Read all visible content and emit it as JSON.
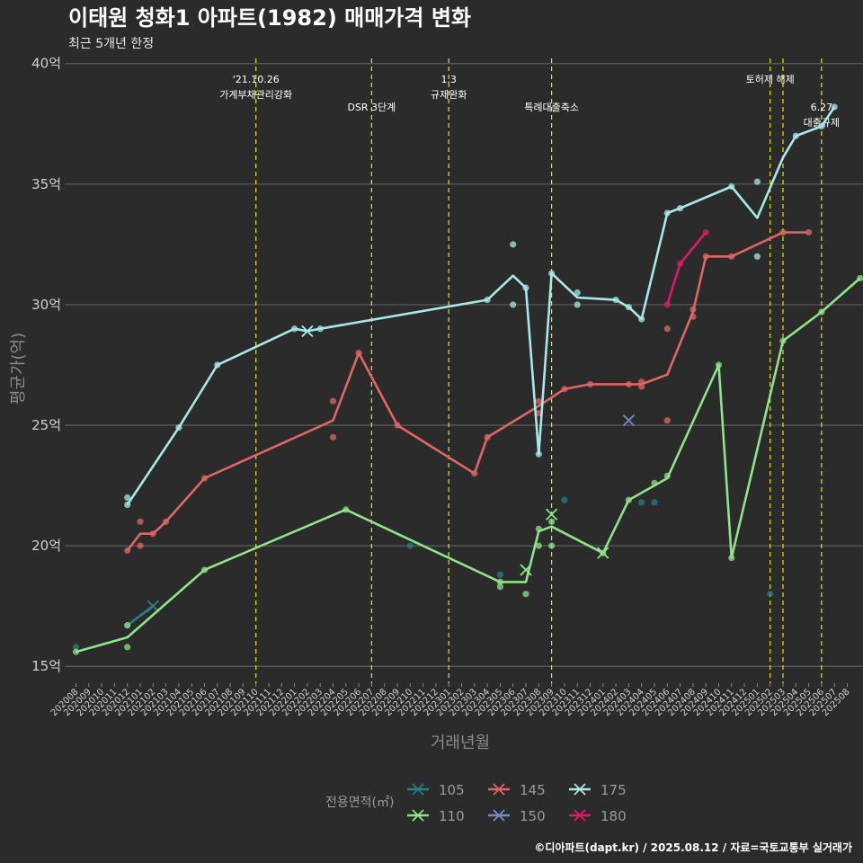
{
  "chart_data": {
    "type": "line",
    "title": "이태원 청화1 아파트(1982) 매매가격 변화",
    "subtitle": "최근 5개년 한정",
    "xlabel": "거래년월",
    "ylabel": "평균가(억)",
    "caption": "©디아파트(dapt.kr) / 2025.08.12 / 자료=국토교통부 실거래가",
    "ylim": [
      14.3,
      40.4
    ],
    "yticks": [
      {
        "value": 15,
        "label": "15억"
      },
      {
        "value": 20,
        "label": "20억"
      },
      {
        "value": 25,
        "label": "25억"
      },
      {
        "value": 30,
        "label": "30억"
      },
      {
        "value": 35,
        "label": "35억"
      },
      {
        "value": 40,
        "label": "40억"
      }
    ],
    "categories": [
      "202008",
      "202009",
      "202010",
      "202011",
      "202012",
      "202101",
      "202102",
      "202103",
      "202104",
      "202105",
      "202106",
      "202107",
      "202108",
      "202109",
      "202110",
      "202111",
      "202112",
      "202201",
      "202202",
      "202203",
      "202204",
      "202205",
      "202206",
      "202207",
      "202208",
      "202209",
      "202210",
      "202211",
      "202212",
      "202301",
      "202302",
      "202303",
      "202304",
      "202305",
      "202306",
      "202307",
      "202308",
      "202309",
      "202310",
      "202311",
      "202312",
      "202401",
      "202402",
      "202403",
      "202404",
      "202405",
      "202406",
      "202407",
      "202408",
      "202409",
      "202410",
      "202411",
      "202412",
      "202501",
      "202502",
      "202503",
      "202504",
      "202505",
      "202506",
      "202507",
      "202508"
    ],
    "events": [
      {
        "x": 14,
        "lines": [
          "'21.10.26",
          "가계부채관리강화"
        ],
        "dy": 0
      },
      {
        "x": 23,
        "lines": [
          "DSR 3단계"
        ],
        "dy": 1
      },
      {
        "x": 29,
        "lines": [
          "1.3",
          "규제완화"
        ],
        "dy": 0
      },
      {
        "x": 37,
        "lines": [
          "특례대출축소"
        ],
        "dy": 1
      },
      {
        "x": 54,
        "lines": [
          "토허제 해제"
        ],
        "dy": 0
      },
      {
        "x": 55,
        "lines": [],
        "dy": 0
      },
      {
        "x": 58,
        "lines": [
          "6.27",
          "대출규제"
        ],
        "dy": 1
      }
    ],
    "legend_title": "전용면적(㎡)",
    "series": [
      {
        "name": "105",
        "color": "#2a7f86",
        "line": [
          [
            4,
            16.7
          ],
          [
            6,
            17.5
          ]
        ],
        "x_marks": [
          [
            6,
            17.5
          ]
        ],
        "points": [
          [
            0,
            15.8
          ],
          [
            4,
            16.7
          ],
          [
            26,
            20.0
          ],
          [
            33,
            18.8
          ],
          [
            38,
            21.9
          ],
          [
            44,
            21.8
          ],
          [
            45,
            21.8
          ],
          [
            54,
            18.0
          ]
        ]
      },
      {
        "name": "110",
        "color": "#8fe388",
        "line": [
          [
            0,
            15.6
          ],
          [
            4,
            16.2
          ],
          [
            10,
            19.0
          ],
          [
            21,
            21.5
          ],
          [
            33,
            18.5
          ],
          [
            35,
            18.5
          ],
          [
            36,
            20.6
          ],
          [
            37,
            20.8
          ],
          [
            41,
            19.7
          ],
          [
            43,
            21.9
          ],
          [
            45,
            22.5
          ],
          [
            46,
            22.8
          ],
          [
            50,
            27.5
          ],
          [
            51,
            19.5
          ],
          [
            55,
            28.5
          ],
          [
            58,
            29.7
          ],
          [
            61,
            31.1
          ]
        ],
        "x_marks": [
          [
            35,
            19.0
          ],
          [
            37,
            21.3
          ],
          [
            41,
            19.7
          ]
        ],
        "points": [
          [
            0,
            15.6
          ],
          [
            4,
            15.8
          ],
          [
            4,
            16.7
          ],
          [
            10,
            19.0
          ],
          [
            21,
            21.5
          ],
          [
            33,
            18.3
          ],
          [
            33,
            18.5
          ],
          [
            35,
            18.0
          ],
          [
            36,
            20.0
          ],
          [
            36,
            20.7
          ],
          [
            37,
            20.0
          ],
          [
            37,
            21.0
          ],
          [
            41,
            19.7
          ],
          [
            43,
            21.9
          ],
          [
            45,
            22.6
          ],
          [
            46,
            22.9
          ],
          [
            50,
            27.5
          ],
          [
            51,
            19.5
          ],
          [
            55,
            28.5
          ],
          [
            58,
            29.7
          ],
          [
            61,
            31.1
          ]
        ]
      },
      {
        "name": "145",
        "color": "#e06666",
        "line": [
          [
            4,
            19.8
          ],
          [
            5,
            20.5
          ],
          [
            6,
            20.5
          ],
          [
            7,
            21.0
          ],
          [
            10,
            22.8
          ],
          [
            20,
            25.2
          ],
          [
            22,
            28.0
          ],
          [
            25,
            25.0
          ],
          [
            31,
            23.0
          ],
          [
            32,
            24.5
          ],
          [
            36,
            25.8
          ],
          [
            38,
            26.5
          ],
          [
            40,
            26.7
          ],
          [
            43,
            26.7
          ],
          [
            44,
            26.7
          ],
          [
            46,
            27.1
          ],
          [
            48,
            29.7
          ],
          [
            49,
            32.0
          ],
          [
            51,
            32.0
          ],
          [
            55,
            33.0
          ],
          [
            57,
            33.0
          ]
        ],
        "x_marks": [],
        "points": [
          [
            4,
            19.8
          ],
          [
            5,
            20.0
          ],
          [
            5,
            21.0
          ],
          [
            6,
            20.5
          ],
          [
            7,
            21.0
          ],
          [
            10,
            22.8
          ],
          [
            20,
            24.5
          ],
          [
            20,
            26.0
          ],
          [
            22,
            28.0
          ],
          [
            25,
            25.0
          ],
          [
            31,
            23.0
          ],
          [
            32,
            24.5
          ],
          [
            36,
            25.5
          ],
          [
            36,
            26.0
          ],
          [
            38,
            26.5
          ],
          [
            40,
            26.7
          ],
          [
            43,
            26.7
          ],
          [
            44,
            26.6
          ],
          [
            44,
            26.8
          ],
          [
            46,
            25.2
          ],
          [
            46,
            29.0
          ],
          [
            48,
            29.5
          ],
          [
            48,
            29.8
          ],
          [
            49,
            32.0
          ],
          [
            51,
            32.0
          ],
          [
            55,
            33.0
          ],
          [
            57,
            33.0
          ]
        ]
      },
      {
        "name": "150",
        "color": "#6f8fc7",
        "line": [],
        "x_marks": [
          [
            43,
            25.2
          ]
        ],
        "points": []
      },
      {
        "name": "175",
        "color": "#a8e8ea",
        "line": [
          [
            4,
            21.7
          ],
          [
            8,
            24.9
          ],
          [
            11,
            27.5
          ],
          [
            17,
            29.0
          ],
          [
            18,
            28.9
          ],
          [
            19,
            29.0
          ],
          [
            32,
            30.2
          ],
          [
            34,
            31.2
          ],
          [
            35,
            30.7
          ],
          [
            36,
            23.8
          ],
          [
            37,
            31.3
          ],
          [
            39,
            30.3
          ],
          [
            42,
            30.2
          ],
          [
            43,
            29.9
          ],
          [
            44,
            29.4
          ],
          [
            46,
            33.8
          ],
          [
            47,
            34.0
          ],
          [
            51,
            34.9
          ],
          [
            53,
            33.6
          ],
          [
            55,
            36.1
          ],
          [
            56,
            37.0
          ],
          [
            58,
            37.4
          ],
          [
            59,
            38.2
          ]
        ],
        "x_marks": [
          [
            18,
            28.9
          ]
        ],
        "points": [
          [
            4,
            21.7
          ],
          [
            4,
            22.0
          ],
          [
            8,
            24.9
          ],
          [
            11,
            27.5
          ],
          [
            17,
            29.0
          ],
          [
            19,
            29.0
          ],
          [
            32,
            30.2
          ],
          [
            34,
            30.0
          ],
          [
            34,
            32.5
          ],
          [
            35,
            30.7
          ],
          [
            36,
            23.8
          ],
          [
            37,
            31.3
          ],
          [
            39,
            30.0
          ],
          [
            39,
            30.5
          ],
          [
            42,
            30.2
          ],
          [
            43,
            29.9
          ],
          [
            44,
            29.4
          ],
          [
            46,
            33.8
          ],
          [
            47,
            34.0
          ],
          [
            51,
            34.9
          ],
          [
            53,
            35.1
          ],
          [
            53,
            32.0
          ],
          [
            56,
            37.0
          ],
          [
            58,
            37.4
          ],
          [
            59,
            38.2
          ]
        ]
      },
      {
        "name": "180",
        "color": "#e0186c",
        "line": [
          [
            46,
            30.0
          ],
          [
            47,
            31.7
          ],
          [
            49,
            33.0
          ]
        ],
        "x_marks": [],
        "points": [
          [
            46,
            30.0
          ],
          [
            47,
            31.7
          ],
          [
            49,
            33.0
          ]
        ]
      }
    ]
  }
}
